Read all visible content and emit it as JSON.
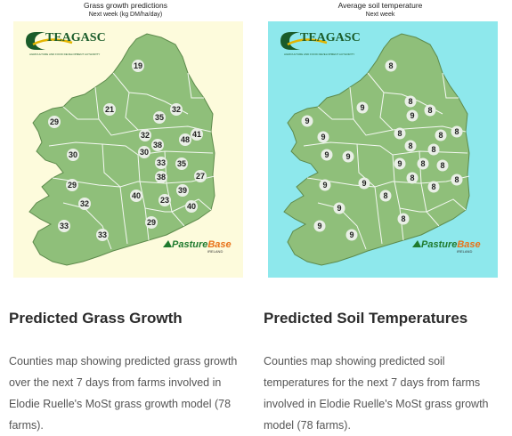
{
  "grass_card": {
    "map_title": "Grass growth predictions",
    "map_subtitle": "Next week (kg DM/ha/day)",
    "background_color": "#fdfbdc",
    "land_color": "#8fbf7a",
    "county_values": [
      "19",
      "32",
      "21",
      "35",
      "29",
      "41",
      "32",
      "48",
      "38",
      "30",
      "33",
      "30",
      "35",
      "27",
      "29",
      "38",
      "39",
      "32",
      "40",
      "23",
      "40",
      "29",
      "33",
      "33"
    ],
    "heading": "Predicted Grass Growth",
    "description": "Counties map showing predicted grass growth over the next 7 days from farms involved in Elodie Ruelle's MoSt grass growth model (78 farms)."
  },
  "soil_card": {
    "map_title": "Average soil temperature",
    "map_subtitle": "Next week",
    "background_color": "#8ee8ec",
    "land_color": "#8fbf7a",
    "county_values": [
      "8",
      "8",
      "9",
      "9",
      "8",
      "8",
      "9",
      "8",
      "9",
      "8",
      "8",
      "9",
      "8",
      "9",
      "9",
      "8",
      "8",
      "8",
      "8",
      "9",
      "8",
      "9",
      "8",
      "9",
      "8",
      "9",
      "9"
    ],
    "heading": "Predicted Soil Temperatures",
    "description": "Counties map showing predicted soil temperatures for the next 7 days from farms involved in Elodie Ruelle's MoSt grass growth model (78 farms)."
  },
  "logos": {
    "teagasc": "TEAGASC",
    "teagasc_sub": "AGRICULTURE AND FOOD DEVELOPMENT AUTHORITY",
    "pasturebase_a": "Pasture",
    "pasturebase_b": "Base",
    "pasturebase_sub": "IRELAND",
    "teagasc_color": "#1a5c2a",
    "pasture_color": "#1f7a2e",
    "base_color": "#e8731a"
  }
}
